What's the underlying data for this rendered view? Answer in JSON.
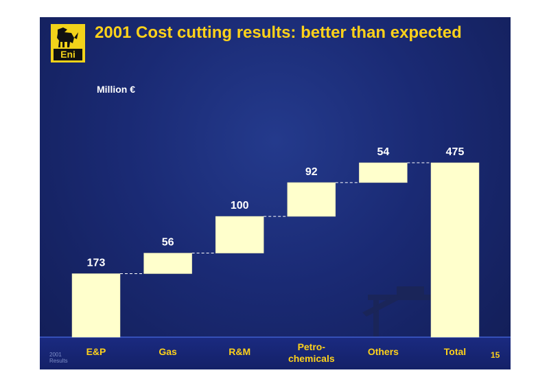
{
  "slide": {
    "title": "2001 Cost cutting results: better than expected",
    "logo_text": "Eni",
    "unit_label": "Million €",
    "footer_label": "2001 Results",
    "page_number": "15"
  },
  "colors": {
    "background": "#1a2a74",
    "bar_fill": "#ffffcc",
    "title": "#ffd21a",
    "label": "#ffffff"
  },
  "chart_data": {
    "type": "bar",
    "subtype": "waterfall",
    "title": "2001 Cost cutting results: better than expected",
    "ylabel": "Million €",
    "categories": [
      "E&P",
      "Gas",
      "R&M",
      "Petro-\nchemicals",
      "Others",
      "Total"
    ],
    "values": [
      173,
      56,
      100,
      92,
      54,
      475
    ],
    "total_index": 5,
    "ylim": [
      0,
      475
    ],
    "grid": false,
    "legend": "none"
  }
}
